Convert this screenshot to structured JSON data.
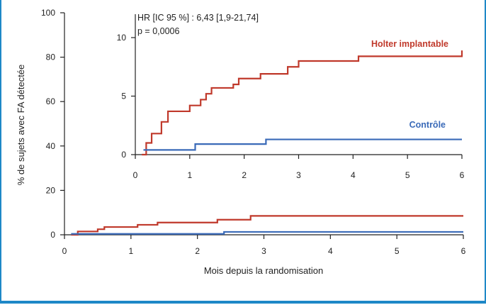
{
  "chart_data": {
    "type": "line",
    "xlabel": "Mois depuis la randomisation",
    "ylabel": "% de sujets avec FA détectée",
    "colors": {
      "holter": "#c0392b",
      "controle": "#3a6ab8"
    },
    "main": {
      "xlim": [
        0,
        6
      ],
      "ylim": [
        0,
        100
      ],
      "x_ticks": [
        "0",
        "1",
        "2",
        "3",
        "4",
        "5",
        "6"
      ],
      "y_ticks": [
        "0",
        "20",
        "40",
        "60",
        "80",
        "100"
      ],
      "series": [
        {
          "id": "holter",
          "x": [
            0.1,
            0.2,
            0.5,
            0.6,
            1.1,
            1.4,
            2.3,
            2.8,
            6.0
          ],
          "y": [
            0,
            1.5,
            2.5,
            3.5,
            4.5,
            5.5,
            6.8,
            8.5,
            8.5
          ]
        },
        {
          "id": "controle",
          "x": [
            0.1,
            2.4,
            6.0
          ],
          "y": [
            0.4,
            1.3,
            1.3
          ]
        }
      ]
    },
    "inset": {
      "xlim": [
        0,
        6
      ],
      "ylim": [
        0,
        12
      ],
      "x_ticks": [
        "0",
        "1",
        "2",
        "3",
        "4",
        "5",
        "6"
      ],
      "y_ticks": [
        {
          "v": 0,
          "label": "0"
        },
        {
          "v": 5,
          "label": "5"
        },
        {
          "v": 10,
          "label": "10"
        }
      ],
      "hr_text": "HR [IC 95 %] : 6,43 [1,9-21,74]",
      "p_text": "p = 0,0006",
      "series": [
        {
          "id": "holter",
          "label": "Holter implantable",
          "x": [
            0.12,
            0.2,
            0.3,
            0.48,
            0.6,
            1.0,
            1.2,
            1.3,
            1.4,
            1.8,
            1.9,
            2.3,
            2.8,
            3.0,
            4.1,
            6.0
          ],
          "y": [
            0,
            1,
            1.8,
            2.8,
            3.7,
            4.2,
            4.7,
            5.2,
            5.7,
            6.0,
            6.5,
            6.9,
            7.5,
            8.0,
            8.4,
            8.9
          ]
        },
        {
          "id": "controle",
          "label": "Contrôle",
          "x": [
            0.15,
            1.1,
            2.4,
            6.0
          ],
          "y": [
            0.4,
            0.9,
            1.3,
            1.3
          ]
        }
      ]
    }
  }
}
